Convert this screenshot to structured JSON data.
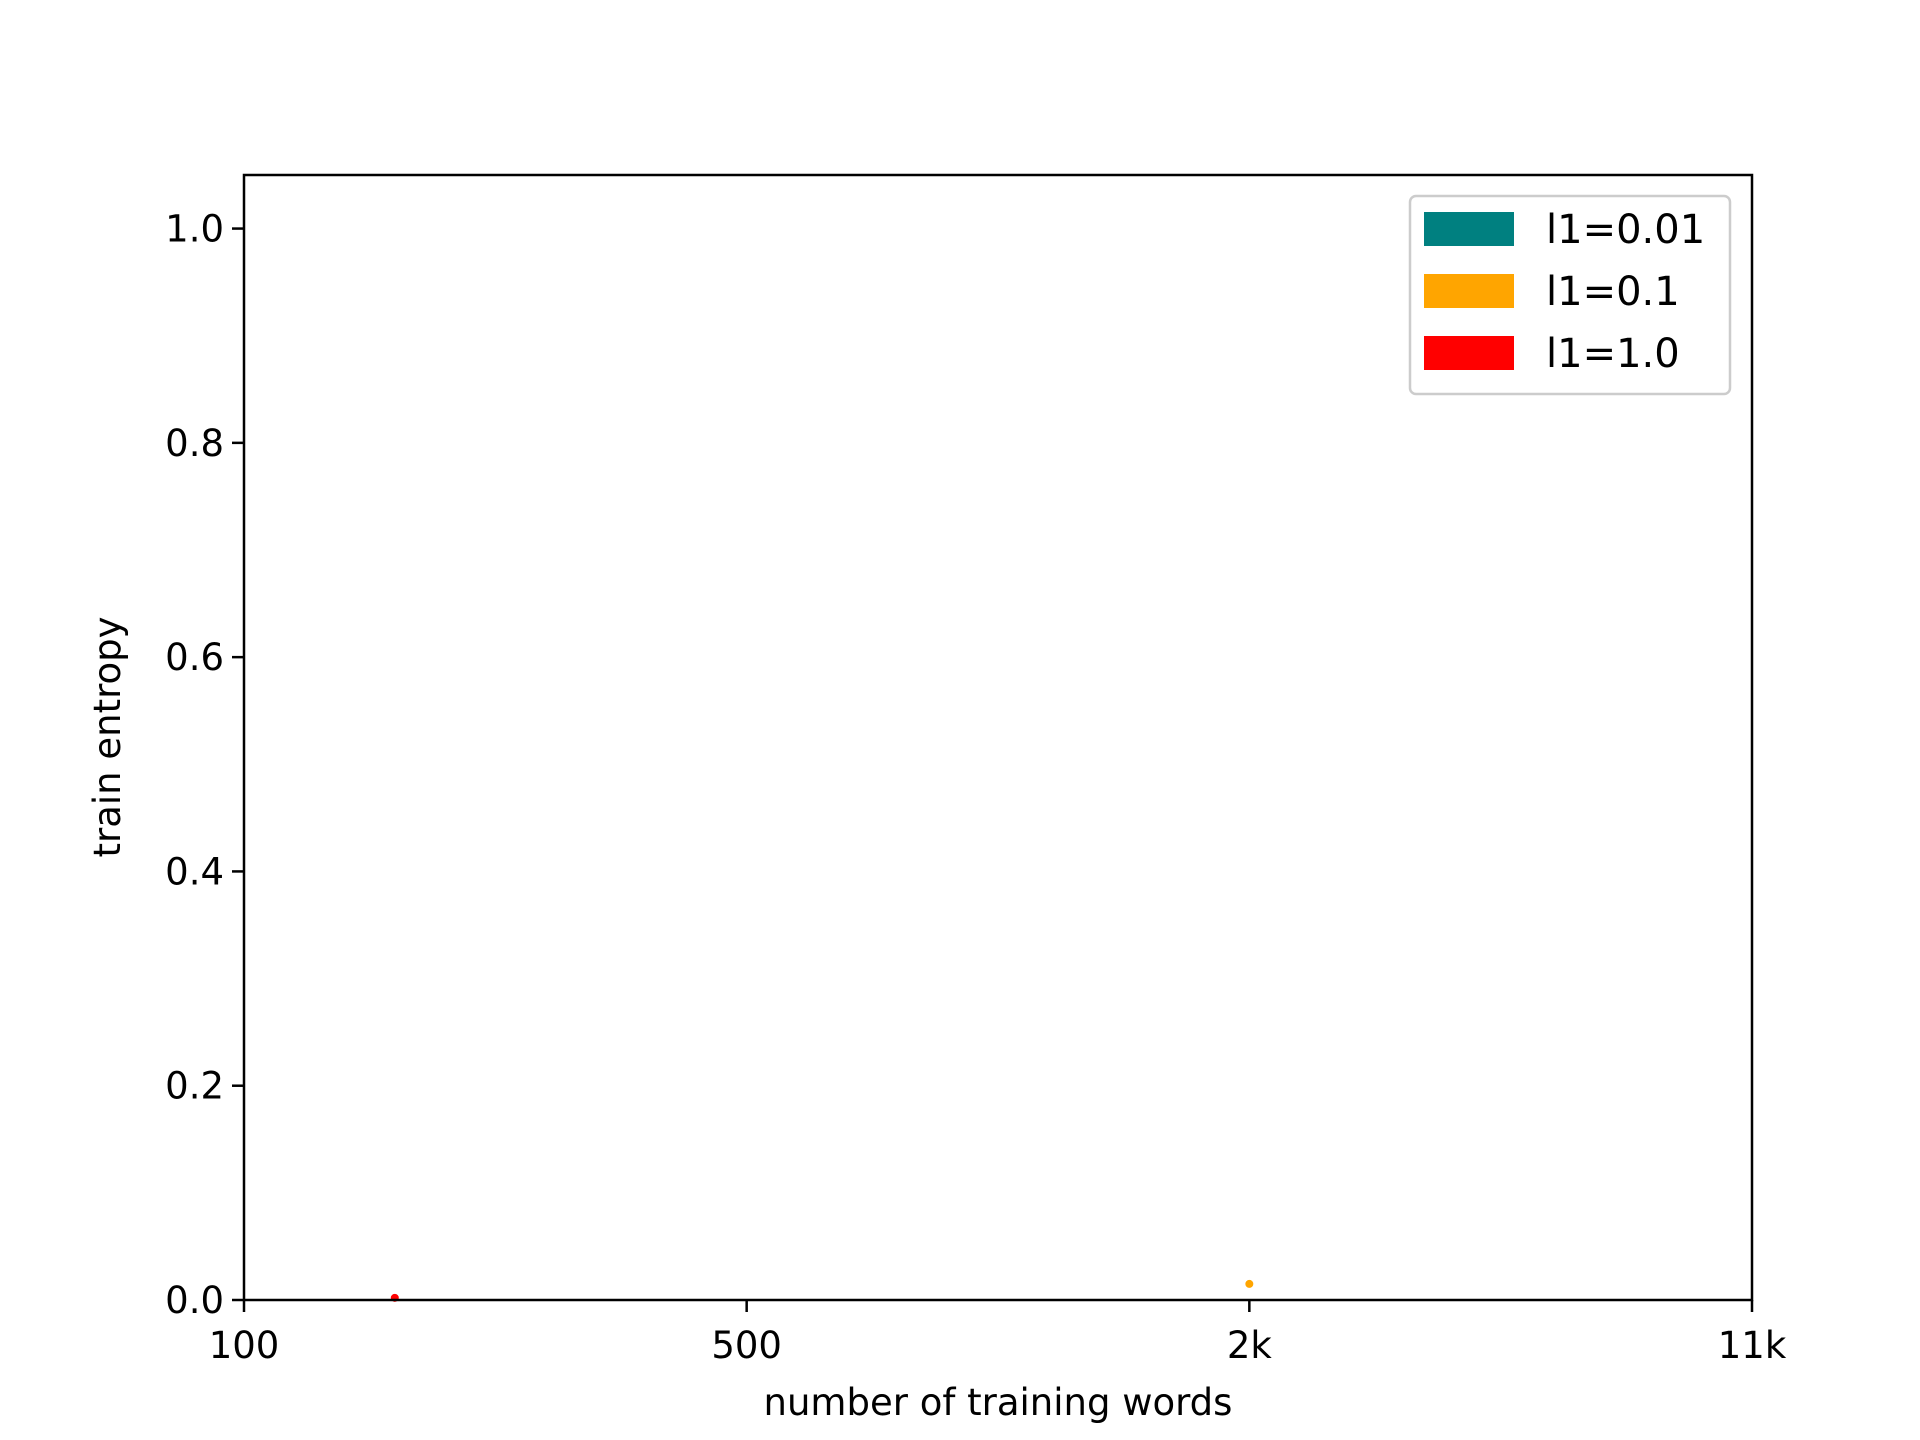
{
  "chart_data": {
    "type": "scatter",
    "title": "",
    "xlabel": "number of training words",
    "ylabel": "train entropy",
    "xscale": "categorical",
    "x_ticks": [
      "100",
      "500",
      "2k",
      "11k"
    ],
    "xlim": [
      "100",
      "11k"
    ],
    "ylim": [
      0.0,
      1.05
    ],
    "y_ticks": [
      "0.0",
      "0.2",
      "0.4",
      "0.6",
      "0.8",
      "1.0"
    ],
    "y_tick_values": [
      0.0,
      0.2,
      0.4,
      0.6,
      0.8,
      1.0
    ],
    "grid": false,
    "legend_position": "upper right",
    "series": [
      {
        "name": "l1=0.01",
        "color": "#008080",
        "points": []
      },
      {
        "name": "l1=0.1",
        "color": "#FFA500",
        "points": [
          {
            "x": "2k",
            "y": 0.015
          }
        ]
      },
      {
        "name": "l1=1.0",
        "color": "#FF0000",
        "points": [
          {
            "x": "200",
            "y": 0.002
          }
        ]
      }
    ]
  }
}
